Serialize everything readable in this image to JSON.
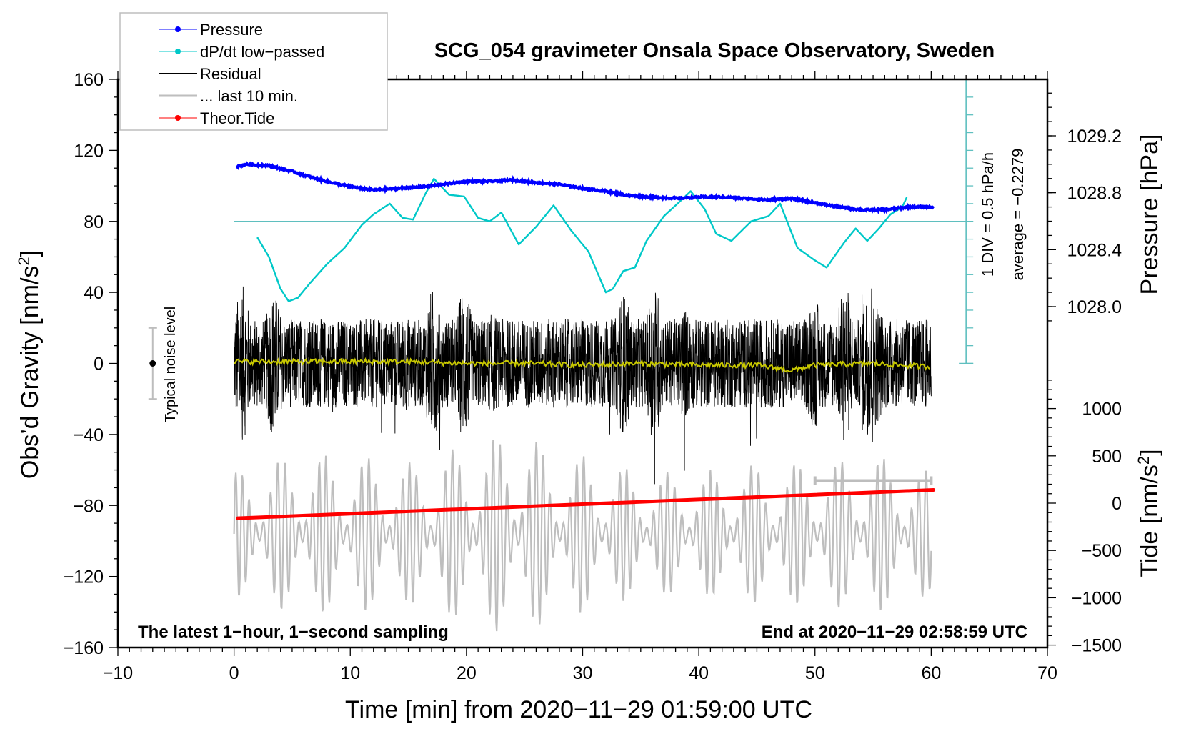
{
  "chart_data": {
    "type": "line",
    "title": "SCG_054 gravimeter Onsala Space Observatory, Sweden",
    "xlabel": "Time [min] from 2020−11−29 01:59:00 UTC",
    "ylabel_left": "Obs’d Gravity [nm/s²]",
    "ylabel_left_main": "Obs’d Gravity [nm/s",
    "ylabel_left_sup": "2",
    "ylabel_left_end": "]",
    "ylabel_right_pressure": "Pressure [hPa]",
    "ylabel_right_tide_main": "Tide [nm/s",
    "ylabel_right_tide_sup": "2",
    "ylabel_right_tide_end": "]",
    "xlim": [
      -10,
      70
    ],
    "ylim": [
      -160,
      160
    ],
    "xticks": [
      -10,
      0,
      10,
      20,
      30,
      40,
      50,
      60,
      70
    ],
    "xtick_labels": [
      "−10",
      "0",
      "10",
      "20",
      "30",
      "40",
      "50",
      "60",
      "70"
    ],
    "yticks": [
      160,
      120,
      80,
      40,
      0,
      -40,
      -80,
      -120,
      -160
    ],
    "ytick_labels": [
      "160",
      "120",
      "80",
      "40",
      "0",
      "−40",
      "−80",
      "−120",
      "−160"
    ],
    "pressure_axis": {
      "range_hpa": [
        1027.6,
        1029.6
      ],
      "ticks": [
        1029.2,
        1028.8,
        1028.4,
        1028.0
      ],
      "tick_labels": [
        "1029.2",
        "1028.8",
        "1028.4",
        "1028.0"
      ]
    },
    "tide_axis": {
      "ticks": [
        1000,
        500,
        0,
        -500,
        -1000,
        -1500
      ],
      "tick_labels": [
        "1000",
        "500",
        "0",
        "−500",
        "−1000",
        "−1500"
      ]
    },
    "dpdt_axis": {
      "label_div": "1 DIV = 0.5 hPa/h",
      "label_avg": "average = −0.2279",
      "average": -0.2279,
      "zero_line_gravity_units": 80
    },
    "legend": {
      "position": "top-left",
      "entries": [
        {
          "label": "Pressure",
          "color": "#0000ff",
          "marker": true,
          "width": 1
        },
        {
          "label": "dP/dt low−passed",
          "color": "#00c8c8",
          "marker": true,
          "width": 1
        },
        {
          "label": "Residual",
          "color": "#000000",
          "marker": false,
          "width": 2
        },
        {
          "label": "... last 10 min.",
          "color": "#bebebe",
          "marker": false,
          "width": 3
        },
        {
          "label": "Theor.Tide",
          "color": "#ff0000",
          "marker": true,
          "width": 1
        }
      ]
    },
    "annotations": {
      "bottom_left": "The latest 1−hour, 1−second sampling",
      "bottom_right": "End at 2020−11−29 02:58:59 UTC",
      "noise_label": "Typical noise level",
      "noise_bar": {
        "x": -7,
        "center": 0,
        "half_range": 20
      }
    },
    "last10min_bar": {
      "x_start": 50,
      "x_end": 60,
      "y_gravity": -66
    },
    "series": [
      {
        "name": "Pressure",
        "axis": "pressure",
        "color": "#0000ff",
        "x": [
          0.2,
          1,
          3,
          5,
          7,
          9,
          11,
          12,
          14,
          16,
          18,
          20,
          22,
          24,
          26,
          28,
          30,
          32,
          34,
          36,
          38,
          40,
          42,
          44,
          46,
          48,
          50,
          52,
          54,
          56,
          58,
          60.2
        ],
        "y": [
          1028.98,
          1029.0,
          1028.99,
          1028.95,
          1028.9,
          1028.86,
          1028.83,
          1028.82,
          1028.83,
          1028.84,
          1028.86,
          1028.88,
          1028.88,
          1028.89,
          1028.87,
          1028.86,
          1028.83,
          1028.81,
          1028.78,
          1028.77,
          1028.76,
          1028.77,
          1028.77,
          1028.76,
          1028.75,
          1028.76,
          1028.73,
          1028.7,
          1028.68,
          1028.68,
          1028.7,
          1028.7
        ]
      },
      {
        "name": "dP/dt low−passed",
        "axis": "gravity",
        "color": "#00c8c8",
        "x": [
          2,
          3,
          4,
          4.7,
          5.5,
          6.5,
          8,
          9.5,
          11,
          12,
          13.4,
          14.5,
          15.4,
          16.5,
          17.2,
          18.5,
          19.8,
          21,
          22,
          23,
          24.5,
          26,
          27.5,
          29,
          30.5,
          32,
          32.6,
          33.5,
          34.5,
          35.5,
          37,
          38.5,
          39.3,
          40.5,
          41.5,
          42.8,
          44.5,
          46,
          47,
          48.5,
          50,
          51,
          52.5,
          53.5,
          54.5,
          55.5,
          56.5,
          57.5,
          58
        ],
        "y": [
          71,
          60,
          42,
          35,
          37,
          45,
          56,
          65,
          78,
          84,
          90,
          82,
          81,
          96,
          104,
          95,
          94,
          82,
          80,
          85,
          67,
          77,
          89,
          75,
          63,
          40,
          42,
          52,
          54,
          69,
          83,
          92,
          97,
          87,
          73,
          69,
          80,
          83,
          90,
          65,
          58,
          54,
          68,
          76,
          69,
          76,
          84,
          88,
          95
        ]
      },
      {
        "name": "Residual",
        "axis": "gravity",
        "color": "#000000",
        "x_range": [
          0,
          60
        ],
        "sampling_s": 1,
        "typical_amplitude": 25,
        "peak_max": 57,
        "peak_min": -68,
        "note": "dense 1-second noise around 0 nm/s2"
      },
      {
        "name": "Residual smoothed",
        "axis": "gravity",
        "color": "#c8c800",
        "x": [
          0,
          5,
          10,
          15,
          20,
          25,
          30,
          35,
          40,
          45,
          48,
          50,
          55,
          60
        ],
        "y": [
          1,
          1,
          1,
          1,
          0,
          0,
          -1,
          0,
          -1,
          -1,
          -4,
          -1,
          0,
          -2
        ]
      },
      {
        "name": "... last 10 min.",
        "axis": "gravity",
        "color": "#bebebe",
        "x_range": [
          0,
          60
        ],
        "oscillation_period_min": 0.6,
        "envelope_amplitude": [
          35,
          45,
          45,
          40,
          60,
          40,
          45,
          35,
          35,
          40,
          40,
          45,
          35
        ],
        "envelope_x": [
          0,
          5,
          10,
          15,
          25,
          28,
          30,
          35,
          40,
          45,
          50,
          55,
          60
        ],
        "center_y": -96
      },
      {
        "name": "Theor.Tide",
        "axis": "tide",
        "color": "#ff0000",
        "x": [
          0.3,
          60.2
        ],
        "y": [
          -160,
          140
        ]
      }
    ]
  }
}
